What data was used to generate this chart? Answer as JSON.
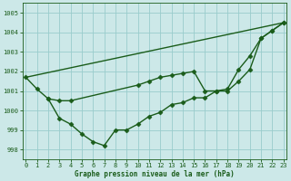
{
  "xlabel": "Graphe pression niveau de la mer (hPa)",
  "bg_color": "#cce8e8",
  "grid_color": "#99cccc",
  "line_color": "#1a5c1a",
  "ylim": [
    997.5,
    1005.5
  ],
  "xlim": [
    -0.3,
    23.3
  ],
  "yticks": [
    998,
    999,
    1000,
    1001,
    1002,
    1003,
    1004,
    1005
  ],
  "xticks": [
    0,
    1,
    2,
    3,
    4,
    5,
    6,
    7,
    8,
    9,
    10,
    11,
    12,
    13,
    14,
    15,
    16,
    17,
    18,
    19,
    20,
    21,
    22,
    23
  ],
  "series": [
    {
      "x": [
        0,
        1,
        2,
        3,
        4,
        10,
        11,
        12,
        13,
        14,
        15,
        16,
        17,
        18,
        19,
        20,
        21,
        22,
        23
      ],
      "y": [
        1001.7,
        1001.1,
        1000.6,
        1000.5,
        1000.5,
        1001.3,
        1001.5,
        1001.7,
        1001.8,
        1001.9,
        1002.0,
        1001.0,
        1001.0,
        1001.1,
        1002.1,
        1002.8,
        1003.7,
        1004.1,
        1004.5
      ],
      "marker": "D",
      "markersize": 2.5,
      "linewidth": 1.0,
      "has_marker": true
    },
    {
      "x": [
        0,
        23
      ],
      "y": [
        1001.7,
        1004.5
      ],
      "marker": null,
      "markersize": 0,
      "linewidth": 1.0,
      "has_marker": false
    },
    {
      "x": [
        2,
        3,
        4,
        5,
        6,
        7,
        8,
        9,
        10,
        11,
        12,
        13,
        14,
        15,
        16,
        17,
        18,
        19,
        20,
        21,
        22,
        23
      ],
      "y": [
        1000.6,
        999.6,
        999.3,
        998.8,
        998.4,
        998.2,
        999.0,
        999.0,
        999.3,
        999.7,
        999.9,
        1000.3,
        1000.4,
        1000.65,
        1000.65,
        1001.0,
        1001.0,
        1001.5,
        1002.1,
        1003.7,
        1004.1,
        1004.5
      ],
      "marker": "D",
      "markersize": 2.5,
      "linewidth": 1.0,
      "has_marker": true
    }
  ]
}
